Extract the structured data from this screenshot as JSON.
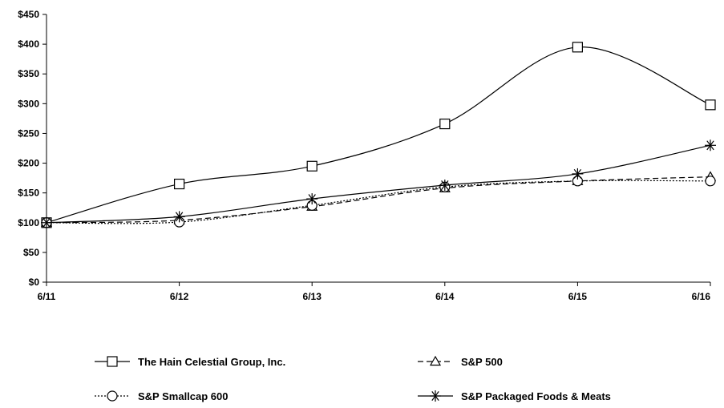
{
  "chart_data": {
    "type": "line",
    "title": "",
    "xlabel": "",
    "ylabel": "",
    "categories": [
      "6/11",
      "6/12",
      "6/13",
      "6/14",
      "6/15",
      "6/16"
    ],
    "ylim": [
      0,
      450
    ],
    "yticks": [
      "$0",
      "$50",
      "$100",
      "$150",
      "$200",
      "$250",
      "$300",
      "$350",
      "$400",
      "$450"
    ],
    "ytick_values": [
      0,
      50,
      100,
      150,
      200,
      250,
      300,
      350,
      400,
      450
    ],
    "grid": false,
    "legend_position": "bottom",
    "series": [
      {
        "name": "The Hain Celestial Group, Inc.",
        "values": [
          100,
          165,
          195,
          266,
          395,
          298
        ],
        "marker": "square",
        "dash": "solid",
        "color": "#000000"
      },
      {
        "name": "S&P 500",
        "values": [
          100,
          104,
          127,
          158,
          170,
          177
        ],
        "marker": "triangle",
        "dash": "dashed",
        "color": "#000000"
      },
      {
        "name": "S&P Smallcap 600",
        "values": [
          100,
          101,
          129,
          160,
          170,
          170
        ],
        "marker": "circle",
        "dash": "dotted",
        "color": "#000000"
      },
      {
        "name": "S&P Packaged Foods & Meats",
        "values": [
          100,
          110,
          140,
          163,
          182,
          230
        ],
        "marker": "asterisk",
        "dash": "solid",
        "color": "#000000"
      }
    ]
  }
}
